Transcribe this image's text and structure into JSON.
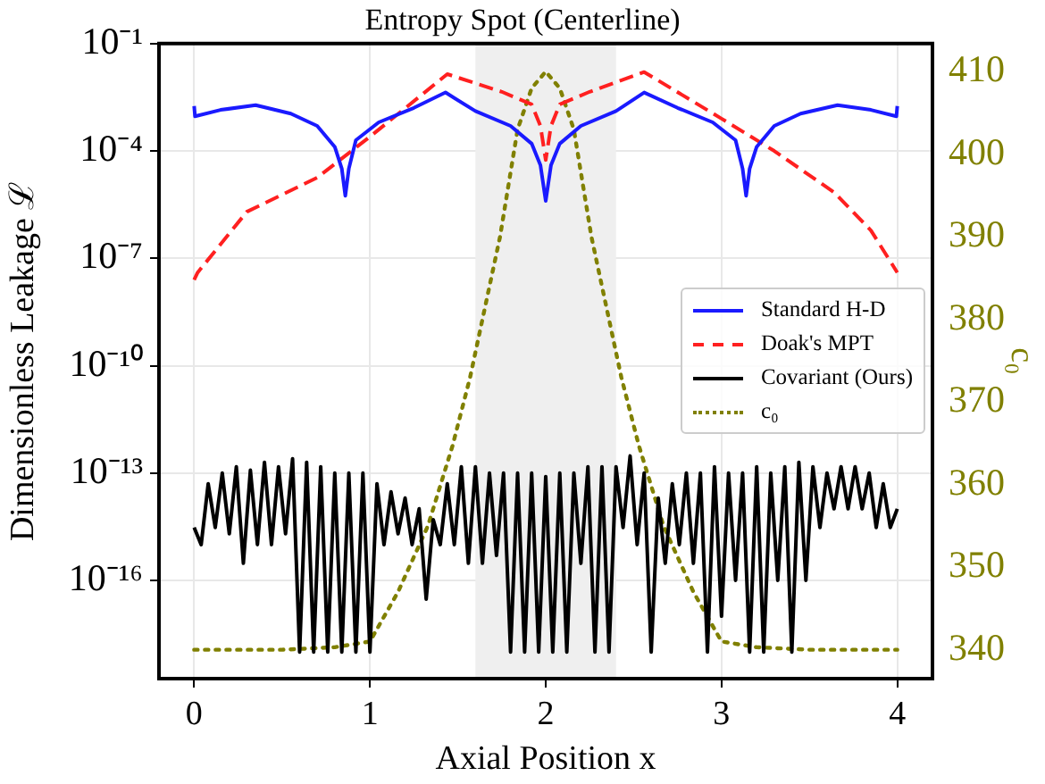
{
  "chart_data": {
    "type": "line",
    "title": "Entropy Spot (Centerline)",
    "xlabel": "Axial Position x",
    "ylabel": "Dimensionless Leakage ℒ",
    "y2label": "c₀",
    "xlim": [
      -0.2,
      4.2
    ],
    "xticks": [
      0,
      1,
      2,
      3,
      4
    ],
    "ylim": [
      1.8e-19,
      0.1
    ],
    "yticks": [
      {
        "value": 0.1,
        "label": "10⁻¹"
      },
      {
        "value": 0.0001,
        "label": "10⁻⁴"
      },
      {
        "value": 1e-07,
        "label": "10⁻⁷"
      },
      {
        "value": 1e-10,
        "label": "10⁻¹⁰"
      },
      {
        "value": 1e-13,
        "label": "10⁻¹³"
      },
      {
        "value": 1e-16,
        "label": "10⁻¹⁶"
      }
    ],
    "y2lim": [
      336.5,
      413.4
    ],
    "y2ticks": [
      340,
      350,
      360,
      370,
      380,
      390,
      400,
      410
    ],
    "log": "y",
    "grid": true,
    "legend": "right",
    "marker": "none",
    "bands": [
      {
        "axis": "x",
        "from": 1.6,
        "to": 2.4,
        "color": "#efefef"
      }
    ],
    "series": [
      {
        "name": "Standard H-D",
        "color": "#1a1aff",
        "line_style": "solid",
        "x": [
          0,
          0.005,
          0.15,
          0.35,
          0.55,
          0.7,
          0.8,
          0.84,
          0.86,
          0.88,
          0.92,
          1.05,
          1.25,
          1.43,
          1.6,
          1.8,
          1.92,
          1.97,
          2.0,
          2.03,
          2.08,
          2.2,
          2.4,
          2.56,
          2.75,
          2.95,
          3.08,
          3.12,
          3.14,
          3.16,
          3.2,
          3.3,
          3.45,
          3.66,
          3.85,
          3.995,
          4.0
        ],
        "values": [
          0.0018,
          0.00093,
          0.0014,
          0.0019,
          0.0011,
          0.0005,
          0.00013,
          3.2e-05,
          5.6e-06,
          3.2e-05,
          0.0002,
          0.00063,
          0.0016,
          0.0043,
          0.0013,
          0.0005,
          0.00016,
          4e-05,
          4e-06,
          4e-05,
          0.00016,
          0.0005,
          0.0013,
          0.0043,
          0.0016,
          0.00063,
          0.0002,
          3.2e-05,
          5.6e-06,
          3.2e-05,
          0.00013,
          0.0005,
          0.0011,
          0.0019,
          0.0014,
          0.00093,
          0.0018
        ]
      },
      {
        "name": "Doak's MPT",
        "color": "#ff2020",
        "line_style": "dashed",
        "x": [
          0,
          0.02,
          0.3,
          0.7,
          1.0,
          1.44,
          1.75,
          1.92,
          1.97,
          2.0,
          2.03,
          2.08,
          2.25,
          2.56,
          3.0,
          3.3,
          3.64,
          3.85,
          4.0
        ],
        "values": [
          2.5e-08,
          4e-08,
          2e-06,
          1.8e-05,
          0.00025,
          0.014,
          0.0045,
          0.002,
          0.0005,
          5.6e-05,
          0.0005,
          0.002,
          0.0045,
          0.016,
          0.0008,
          0.0001,
          7e-06,
          6e-07,
          4e-08
        ]
      },
      {
        "name": "Covariant (Ours)",
        "color": "#000000",
        "line_style": "solid",
        "x": [
          0,
          0.04,
          0.08,
          0.12,
          0.16,
          0.2,
          0.24,
          0.28,
          0.32,
          0.36,
          0.4,
          0.44,
          0.48,
          0.52,
          0.56,
          0.6,
          0.64,
          0.68,
          0.72,
          0.76,
          0.8,
          0.84,
          0.88,
          0.92,
          0.96,
          1.0,
          1.04,
          1.08,
          1.12,
          1.16,
          1.2,
          1.24,
          1.28,
          1.32,
          1.36,
          1.4,
          1.44,
          1.48,
          1.52,
          1.56,
          1.6,
          1.64,
          1.68,
          1.72,
          1.76,
          1.8,
          1.84,
          1.88,
          1.92,
          1.96,
          2.0,
          2.04,
          2.08,
          2.12,
          2.16,
          2.2,
          2.24,
          2.28,
          2.32,
          2.36,
          2.4,
          2.44,
          2.48,
          2.52,
          2.56,
          2.6,
          2.64,
          2.68,
          2.72,
          2.76,
          2.8,
          2.84,
          2.88,
          2.92,
          2.96,
          3.0,
          3.04,
          3.08,
          3.12,
          3.16,
          3.2,
          3.24,
          3.28,
          3.32,
          3.36,
          3.4,
          3.44,
          3.48,
          3.52,
          3.56,
          3.6,
          3.64,
          3.68,
          3.72,
          3.76,
          3.8,
          3.84,
          3.88,
          3.92,
          3.96,
          4.0
        ],
        "values": [
          3e-15,
          1e-15,
          5e-14,
          3e-15,
          1e-13,
          2e-15,
          1.5e-13,
          3e-16,
          1.2e-13,
          1e-15,
          2e-13,
          1e-15,
          1.5e-13,
          2e-15,
          2.5e-13,
          1e-18,
          2e-13,
          1e-18,
          1.5e-13,
          1e-18,
          1e-13,
          1e-18,
          1e-13,
          1e-18,
          1e-13,
          1e-18,
          5e-14,
          1e-15,
          3e-14,
          2e-15,
          2e-14,
          1e-15,
          1e-14,
          3e-17,
          5e-15,
          1e-15,
          5e-14,
          1e-15,
          1.5e-13,
          3e-16,
          1.5e-13,
          3e-16,
          1e-13,
          5e-16,
          1e-13,
          1e-18,
          1e-13,
          1e-18,
          1e-13,
          1e-18,
          8e-14,
          1e-18,
          1e-13,
          1e-18,
          1e-13,
          3e-16,
          1.5e-13,
          1e-18,
          1.5e-13,
          1e-18,
          1.5e-13,
          3e-15,
          3e-13,
          1e-15,
          1e-13,
          1e-18,
          2e-14,
          3e-16,
          5e-14,
          1e-15,
          1e-13,
          3e-16,
          1e-13,
          1e-18,
          1.5e-13,
          1e-17,
          1e-13,
          1e-16,
          1e-13,
          1e-18,
          1.5e-13,
          1e-18,
          1e-13,
          1e-16,
          1.5e-13,
          1e-18,
          2e-13,
          1e-16,
          1.5e-13,
          3e-15,
          1e-13,
          1e-14,
          1.5e-13,
          1e-14,
          1.5e-13,
          1e-14,
          1e-13,
          3e-15,
          5e-14,
          3e-15,
          1e-14
        ]
      },
      {
        "name": "c₀",
        "color": "#808000",
        "line_style": "dotted",
        "axis": "y2",
        "x": [
          0,
          0.5,
          0.8,
          1.0,
          1.16,
          1.33,
          1.47,
          1.57,
          1.74,
          1.84,
          1.92,
          2.0,
          2.08,
          2.16,
          2.26,
          2.43,
          2.53,
          2.67,
          2.84,
          3.0,
          3.2,
          3.5,
          4.0
        ],
        "values": [
          340,
          340,
          340.3,
          341,
          347,
          355,
          364.7,
          373,
          390,
          403,
          408,
          410,
          408,
          403,
          390,
          373,
          364.7,
          355,
          347,
          341,
          340.3,
          340,
          340
        ]
      }
    ]
  }
}
